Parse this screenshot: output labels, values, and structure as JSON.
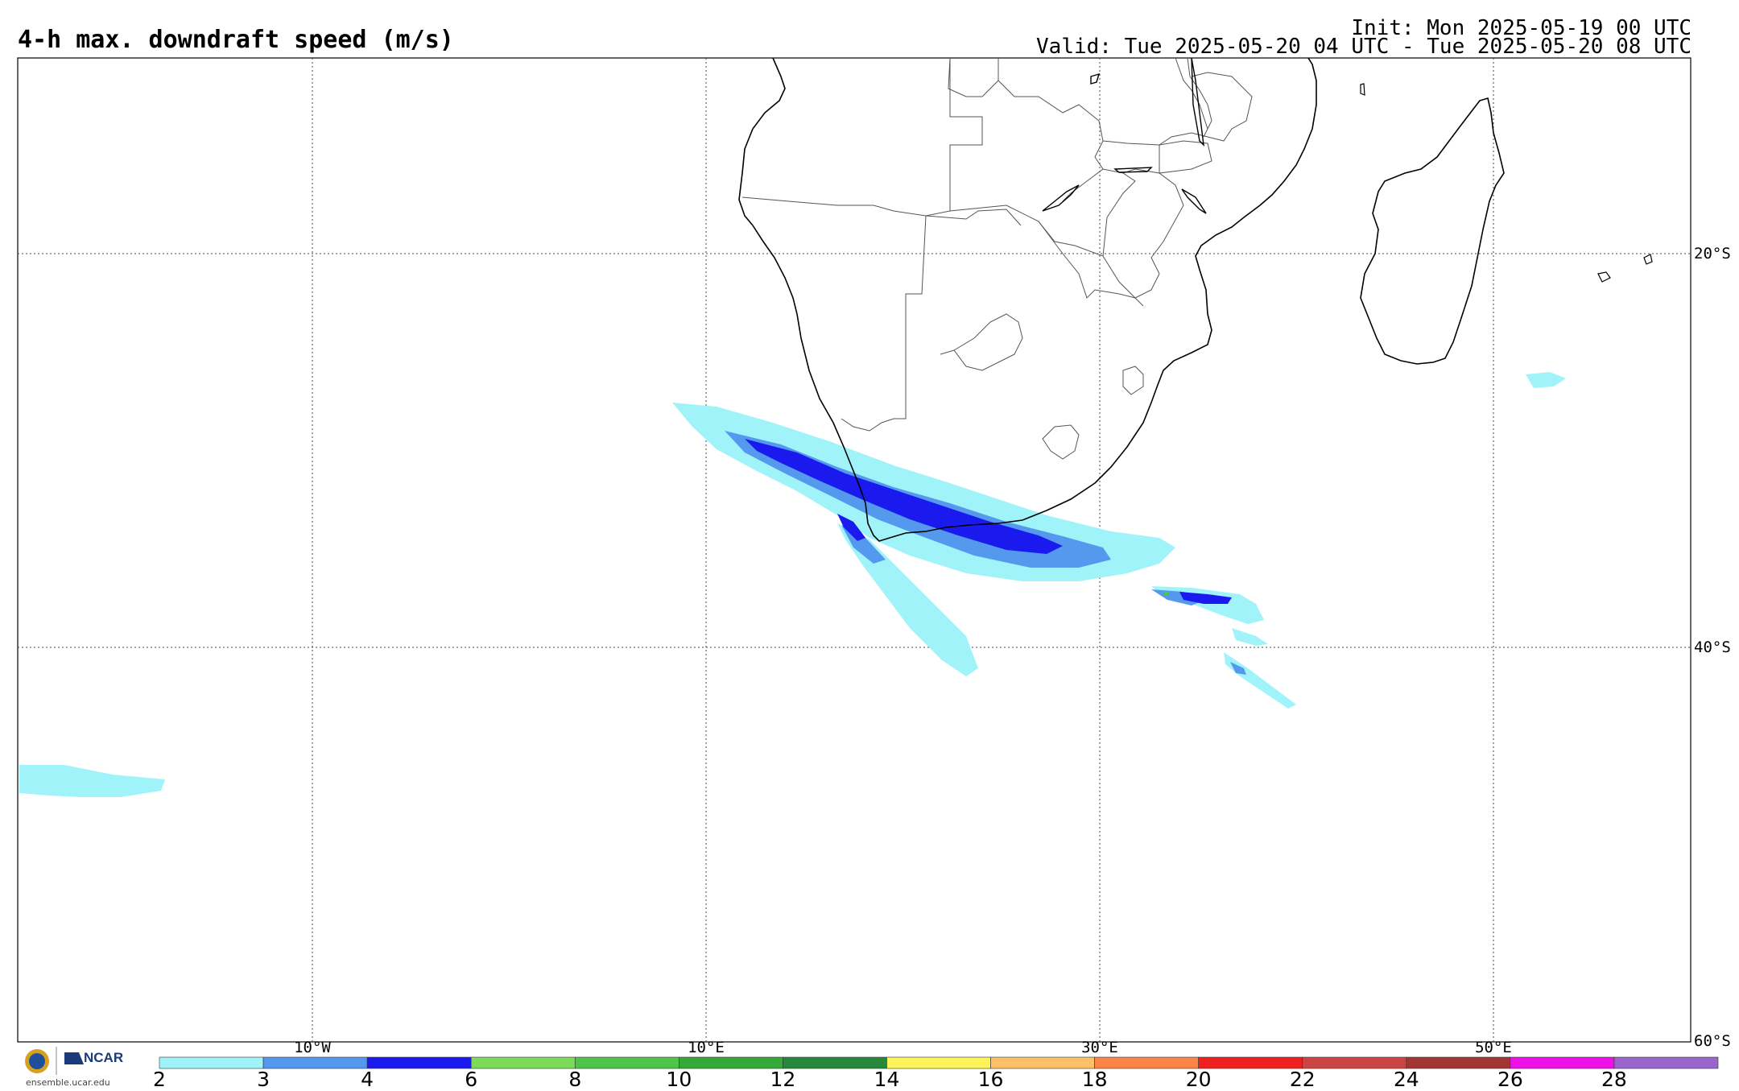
{
  "header": {
    "title": "4-h max. downdraft speed (m/s)",
    "init": "Init: Mon 2025-05-19 00 UTC",
    "valid": "Valid: Tue 2025-05-20 04 UTC - Tue 2025-05-20 08 UTC"
  },
  "map": {
    "lon_labels": [
      "10°W",
      "10°E",
      "30°E",
      "50°E"
    ],
    "lat_labels": [
      "20°S",
      "40°S",
      "60°S"
    ],
    "land_outline_color": "#000000",
    "border_color": "#555555",
    "gridline_style": "dotted"
  },
  "logo": {
    "org": "NCAR",
    "site": "ensemble.ucar.edu"
  },
  "colorbar": {
    "labels": [
      "2",
      "3",
      "4",
      "6",
      "8",
      "10",
      "12",
      "14",
      "16",
      "18",
      "20",
      "22",
      "24",
      "26",
      "28"
    ],
    "colors": [
      "#a0f4f9",
      "#5599ee",
      "#1a1aee",
      "#7dda5a",
      "#4fc44a",
      "#35a83a",
      "#25883a",
      "#fff35a",
      "#fbc068",
      "#fb8448",
      "#ef2020",
      "#cc4444",
      "#a43535",
      "#ee10e6",
      "#9966cc"
    ]
  }
}
